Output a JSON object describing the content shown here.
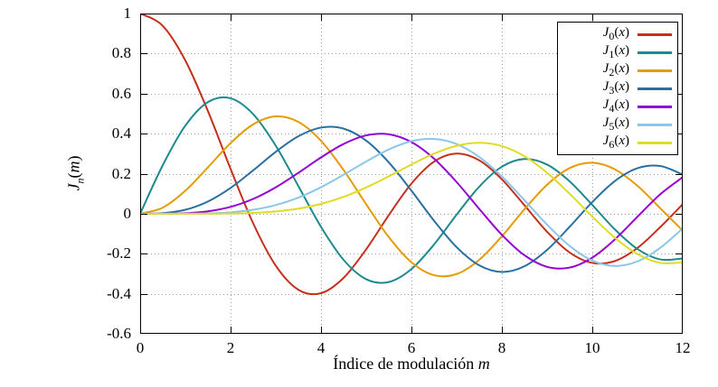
{
  "figure": {
    "background": "#ffffff",
    "border_color": "#000000",
    "grid_color": "#9e9e9e",
    "xlabel": {
      "text": "Índice de modulación ",
      "var": "m"
    },
    "ylabel": {
      "prefix": "J",
      "sub": "n",
      "open": "(",
      "var": "m",
      "close": ")"
    }
  },
  "chart_data": {
    "type": "line",
    "title": "",
    "xlabel": "Índice de modulación m",
    "ylabel": "J_n(m)",
    "xlim": [
      0,
      12
    ],
    "ylim": [
      -0.6,
      1
    ],
    "grid": "dotted",
    "legend_position": "top-right-inside",
    "x_ticks": [
      {
        "label": "0",
        "value": 0
      },
      {
        "label": "2",
        "value": 2
      },
      {
        "label": "4",
        "value": 4
      },
      {
        "label": "6",
        "value": 6
      },
      {
        "label": "8",
        "value": 8
      },
      {
        "label": "10",
        "value": 10
      },
      {
        "label": "12",
        "value": 12
      }
    ],
    "y_ticks": [
      {
        "label": "1",
        "value": 1
      },
      {
        "label": "0.8",
        "value": 0.8
      },
      {
        "label": "0.6",
        "value": 0.6
      },
      {
        "label": "0.4",
        "value": 0.4
      },
      {
        "label": "0.2",
        "value": 0.2
      },
      {
        "label": "0",
        "value": 0
      },
      {
        "label": "-0.2",
        "value": -0.2
      },
      {
        "label": "-0.4",
        "value": -0.4
      },
      {
        "label": "-0.6",
        "value": -0.6
      }
    ],
    "x": [
      0,
      0.5,
      1,
      1.5,
      2,
      2.5,
      3,
      3.5,
      4,
      4.5,
      5,
      5.5,
      6,
      6.5,
      7,
      7.5,
      8,
      8.5,
      9,
      9.5,
      10,
      10.5,
      11,
      11.5,
      12
    ],
    "series": [
      {
        "name": "J_0(x)",
        "legend": {
          "base": "J",
          "sub": "0",
          "open": "(",
          "var": "x",
          "close": ")"
        },
        "color": "#c5301d",
        "values": [
          1.0,
          0.9385,
          0.7652,
          0.5118,
          0.2239,
          -0.0484,
          -0.2601,
          -0.3801,
          -0.3971,
          -0.3205,
          -0.1776,
          -0.0068,
          0.1506,
          0.2601,
          0.3001,
          0.2663,
          0.1717,
          0.0419,
          -0.0903,
          -0.1939,
          -0.2459,
          -0.2366,
          -0.1712,
          -0.0677,
          0.0477
        ]
      },
      {
        "name": "J_1(x)",
        "legend": {
          "base": "J",
          "sub": "1",
          "open": "(",
          "var": "x",
          "close": ")"
        },
        "color": "#1c8a8e",
        "values": [
          0.0,
          0.2423,
          0.4401,
          0.5579,
          0.5767,
          0.4971,
          0.3391,
          0.1374,
          -0.066,
          -0.2311,
          -0.3276,
          -0.3414,
          -0.2767,
          -0.1538,
          -0.0047,
          0.1352,
          0.2346,
          0.2731,
          0.2453,
          0.1613,
          0.0435,
          -0.0789,
          -0.1768,
          -0.2284,
          -0.2234
        ]
      },
      {
        "name": "J_2(x)",
        "legend": {
          "base": "J",
          "sub": "2",
          "open": "(",
          "var": "x",
          "close": ")"
        },
        "color": "#e69b00",
        "values": [
          0.0,
          0.0306,
          0.1149,
          0.2321,
          0.3528,
          0.4461,
          0.4861,
          0.4586,
          0.3641,
          0.2178,
          0.0466,
          -0.1173,
          -0.2429,
          -0.3074,
          -0.3014,
          -0.2303,
          -0.113,
          0.0223,
          0.1448,
          0.2279,
          0.2546,
          0.2216,
          0.139,
          0.0279,
          -0.0849
        ]
      },
      {
        "name": "J_3(x)",
        "legend": {
          "base": "J",
          "sub": "3",
          "open": "(",
          "var": "x",
          "close": ")"
        },
        "color": "#2a6f9e",
        "values": [
          0.0,
          0.0026,
          0.0196,
          0.061,
          0.1289,
          0.2166,
          0.3091,
          0.3868,
          0.4302,
          0.4247,
          0.3648,
          0.2561,
          0.1148,
          -0.0353,
          -0.1676,
          -0.2581,
          -0.2911,
          -0.2626,
          -0.1809,
          -0.0653,
          0.0584,
          0.1633,
          0.2273,
          0.2381,
          0.1951
        ]
      },
      {
        "name": "J_4(x)",
        "legend": {
          "base": "J",
          "sub": "4",
          "open": "(",
          "var": "x",
          "close": ")"
        },
        "color": "#9400d3",
        "values": [
          0.0,
          0.0002,
          0.0025,
          0.0118,
          0.034,
          0.0738,
          0.132,
          0.2044,
          0.2811,
          0.3484,
          0.3912,
          0.3967,
          0.3576,
          0.2748,
          0.1578,
          0.0238,
          -0.1054,
          -0.2077,
          -0.2655,
          -0.2691,
          -0.2196,
          -0.1283,
          -0.015,
          0.0963,
          0.1825
        ]
      },
      {
        "name": "J_5(x)",
        "legend": {
          "base": "J",
          "sub": "5",
          "open": "(",
          "var": "x",
          "close": ")"
        },
        "color": "#8cc6e8",
        "values": [
          0.0,
          0.0,
          0.0002,
          0.0018,
          0.007,
          0.0195,
          0.043,
          0.0804,
          0.1321,
          0.1947,
          0.2611,
          0.3209,
          0.3621,
          0.3736,
          0.3479,
          0.2833,
          0.1858,
          0.0671,
          -0.055,
          -0.1613,
          -0.2341,
          -0.2611,
          -0.2383,
          -0.1711,
          -0.0735
        ]
      },
      {
        "name": "J_6(x)",
        "legend": {
          "base": "J",
          "sub": "6",
          "open": "(",
          "var": "x",
          "close": ")"
        },
        "color": "#e0dc24",
        "values": [
          0.0,
          0.0,
          0.0,
          0.0002,
          0.0012,
          0.0042,
          0.0114,
          0.0254,
          0.0491,
          0.0843,
          0.131,
          0.1868,
          0.2458,
          0.2999,
          0.3392,
          0.3541,
          0.3376,
          0.2867,
          0.2043,
          0.0993,
          -0.0145,
          -0.1203,
          -0.2016,
          -0.2459,
          -0.2437
        ]
      }
    ]
  }
}
